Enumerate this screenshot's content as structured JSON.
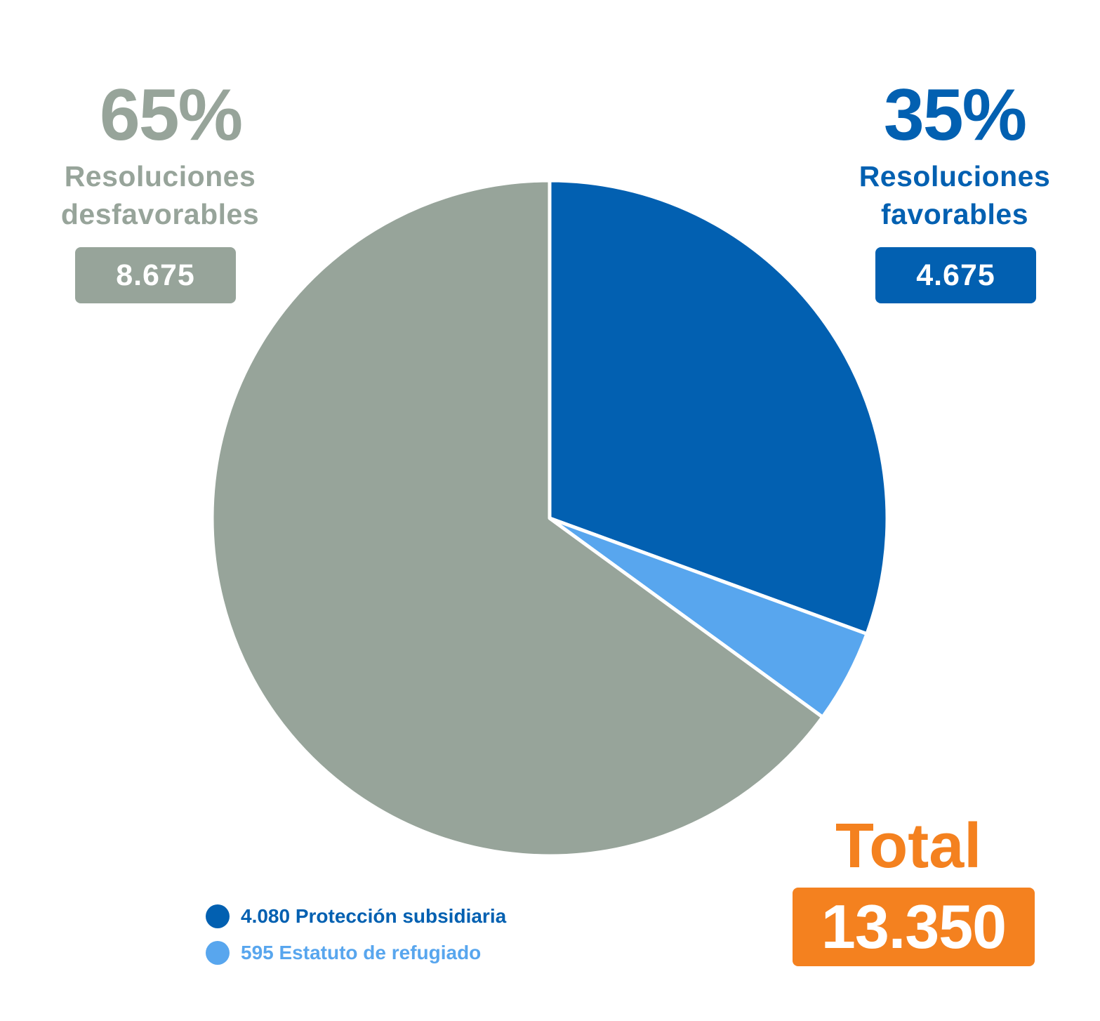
{
  "chart_data": {
    "type": "pie",
    "slices": [
      {
        "label": "4.080 Protección subsidiaria",
        "value": 4080,
        "color": "#0260B1"
      },
      {
        "label": "595 Estatuto de refugiado",
        "value": 595,
        "color": "#58A6EE"
      },
      {
        "label": "Resoluciones desfavorables",
        "value": 8675,
        "color": "#97A49A"
      }
    ],
    "start_angle_deg": 0,
    "direction": "clockwise"
  },
  "unfavorable": {
    "percent": "65%",
    "label_line1": "Resoluciones",
    "label_line2": "desfavorables",
    "value": "8.675",
    "color": "#97A49A"
  },
  "favorable": {
    "percent": "35%",
    "label_line1": "Resoluciones",
    "label_line2": "favorables",
    "value": "4.675",
    "color": "#0260B1"
  },
  "legend": {
    "items": [
      {
        "text": "4.080 Protección subsidiaria",
        "color": "#0260B1"
      },
      {
        "text": "595 Estatuto de refugiado",
        "color": "#58A6EE"
      }
    ]
  },
  "total": {
    "title": "Total",
    "value": "13.350",
    "color": "#F4811F"
  }
}
